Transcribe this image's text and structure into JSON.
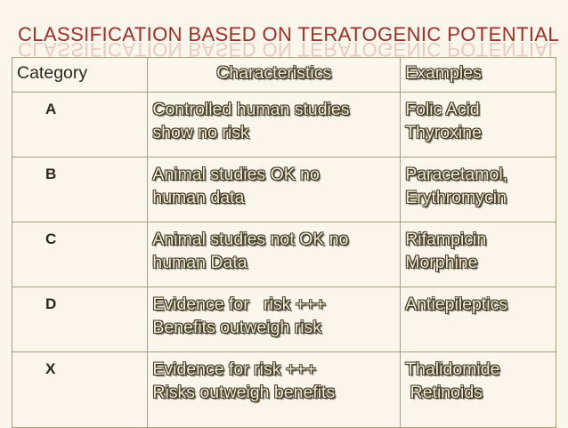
{
  "title": "CLASSIFICATION BASED ON TERATOGENIC POTENTIAL",
  "table": {
    "headers": [
      "Category",
      "Characteristics",
      "Examples"
    ],
    "rows": [
      {
        "category": "A",
        "characteristics": [
          "Controlled human studies",
          "show no risk"
        ],
        "examples": [
          "Folic Acid",
          "Thyroxine"
        ]
      },
      {
        "category": "B",
        "characteristics": [
          "Animal studies OK no",
          "human data"
        ],
        "examples": [
          "Paracetamol,",
          "Erythromycin"
        ]
      },
      {
        "category": "C",
        "characteristics": [
          "Animal studies not OK no",
          "human Data"
        ],
        "examples": [
          "Rifampicin",
          "Morphine"
        ]
      },
      {
        "category": "D",
        "characteristics": [
          "Evidence for   risk +++",
          "Benefits outweigh risk"
        ],
        "examples": [
          "Antiepileptics"
        ]
      },
      {
        "category": "X",
        "characteristics": [
          "Evidence for risk +++",
          "Risks outweigh benefits"
        ],
        "examples": [
          "Thalidomide",
          " Retinoids"
        ]
      }
    ]
  }
}
